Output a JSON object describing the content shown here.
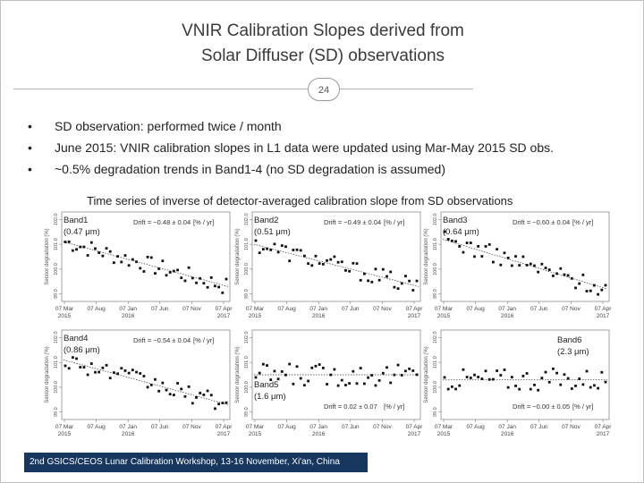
{
  "slide": {
    "title_line1": "VNIR Calibration Slopes derived from",
    "title_line2": "Solar Diffuser (SD) observations",
    "page_number": "24",
    "bullets": [
      "SD observation: performed twice / month",
      "June 2015: VNIR calibration slopes in L1 data were updated using Mar-May 2015 SD obs.",
      "~0.5% degradation trends in Band1-4 (no SD degradation is assumed)"
    ],
    "bullet_char": "•",
    "subtitle": "Time series of inverse of detector-averaged calibration slope from SD observations",
    "footer": "2nd GSICS/CEOS Lunar Calibration Workshop, 13-16 November, Xi'an, China"
  },
  "chart_data": [
    {
      "type": "scatter",
      "band": "Band1",
      "wavelength": "(0.47 μm)",
      "drift_label": "Drift = −0.48 ± 0.04",
      "unit_label": "[% / yr]",
      "ylabel": "Sensor degradation (%)",
      "ytick_labels": [
        "99.0",
        "100.0",
        "101.0",
        "102.0"
      ],
      "xtick_labels": [
        "07 Mar\n2015",
        "07 Aug",
        "07 Jan\n2016",
        "07 Jun",
        "07 Nov",
        "07 Apr\n2017"
      ],
      "trend": [
        101.1,
        99.3
      ],
      "legend_pos": "top-left"
    },
    {
      "type": "scatter",
      "band": "Band2",
      "wavelength": "(0.51 μm)",
      "drift_label": "Drift = −0.49 ± 0.04",
      "unit_label": "[% / yr]",
      "ylabel": "Sensor degradation (%)",
      "ytick_labels": [
        "99.0",
        "100.0",
        "101.0",
        "102.0"
      ],
      "xtick_labels": [
        "07 Mar\n2015",
        "07 Aug",
        "07 Jan\n2016",
        "07 Jun",
        "07 Nov",
        "07 Apr\n2017"
      ],
      "trend": [
        101.0,
        99.3
      ],
      "legend_pos": "top-left"
    },
    {
      "type": "scatter",
      "band": "Band3",
      "wavelength": "(0.64 μm)",
      "drift_label": "Drift = −0.60 ± 0.04",
      "unit_label": "[% / yr]",
      "ylabel": "Sensor degradation (%)",
      "ytick_labels": [
        "99.0",
        "100.0",
        "101.0",
        "102.0"
      ],
      "xtick_labels": [
        "07 Mar\n2015",
        "07 Aug",
        "07 Jan\n2016",
        "07 Jun",
        "07 Nov",
        "07 Apr\n2017"
      ],
      "trend": [
        101.2,
        99.2
      ],
      "legend_pos": "top-left"
    },
    {
      "type": "scatter",
      "band": "Band4",
      "wavelength": "(0.86 μm)",
      "drift_label": "Drift = −0.54 ± 0.04",
      "unit_label": "[% / yr]",
      "ylabel": "Sensor degradation (%)",
      "ytick_labels": [
        "99.0",
        "100.0",
        "101.0",
        "102.0"
      ],
      "xtick_labels": [
        "07 Mar\n2015",
        "07 Aug",
        "07 Jan\n2016",
        "07 Jun",
        "07 Nov",
        "07 Apr\n2017"
      ],
      "trend": [
        101.1,
        99.3
      ],
      "legend_pos": "top-left"
    },
    {
      "type": "scatter",
      "band": "Band5",
      "wavelength": "(1.6 μm)",
      "drift_label": "Drift = 0.02 ± 0.07",
      "unit_label": "[% / yr]",
      "ylabel": "Sensor degradation (%)",
      "ytick_labels": [
        "99.0",
        "100.0",
        "101.0",
        "102.0"
      ],
      "xtick_labels": [
        "07 Mar\n2015",
        "07 Aug",
        "07 Jan\n2016",
        "07 Jun",
        "07 Nov",
        "07 Apr\n2017"
      ],
      "trend": [
        100.5,
        100.5
      ],
      "legend_pos": "bottom-left"
    },
    {
      "type": "scatter",
      "band": "Band6",
      "wavelength": "(2.3 μm)",
      "drift_label": "Drift = −0.00 ± 0.05",
      "unit_label": "[% / yr]",
      "ylabel": "Sensor degradation (%)",
      "ytick_labels": [
        "99.0",
        "100.0",
        "101.0",
        "102.0"
      ],
      "xtick_labels": [
        "07 Mar\n2015",
        "07 Aug",
        "07 Jan\n2016",
        "07 Jun",
        "07 Nov",
        "07 Apr\n2017"
      ],
      "trend": [
        100.3,
        100.3
      ],
      "legend_pos": "top-right"
    }
  ]
}
